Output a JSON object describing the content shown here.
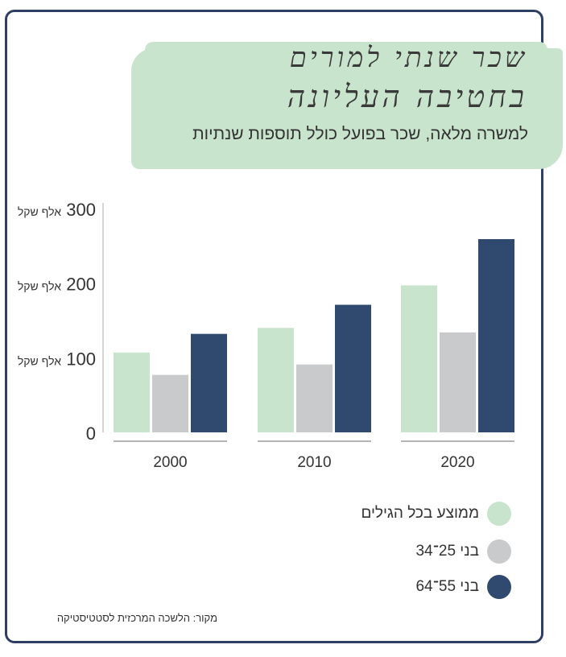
{
  "title_line1": "שכר שנתי למורים",
  "title_line2": "בחטיבה העליונה",
  "subtitle": "למשרה מלאה, שכר בפועל כולל תוספות שנתיות",
  "source": "מקור: הלשכה המרכזית לסטטיסטיקה",
  "chart_data": {
    "type": "bar",
    "categories": [
      "2000",
      "2010",
      "2020"
    ],
    "series": [
      {
        "name": "ממוצע בכל הגילים",
        "color": "#c9e4cd",
        "values": [
          107,
          140,
          197
        ]
      },
      {
        "name": "בני 25־34",
        "color": "#c9cacc",
        "values": [
          77,
          91,
          134
        ]
      },
      {
        "name": "בני 55־64",
        "color": "#2f4a6e",
        "values": [
          132,
          171,
          259
        ]
      }
    ],
    "ylim": [
      0,
      300
    ],
    "yticks": [
      {
        "value": 0,
        "num": "0",
        "unit": ""
      },
      {
        "value": 100,
        "num": "100",
        "unit": "אלף שקל"
      },
      {
        "value": 200,
        "num": "200",
        "unit": "אלף שקל"
      },
      {
        "value": 300,
        "num": "300",
        "unit": "אלף שקל"
      }
    ],
    "grid": false,
    "legend_position": "bottom-right"
  }
}
